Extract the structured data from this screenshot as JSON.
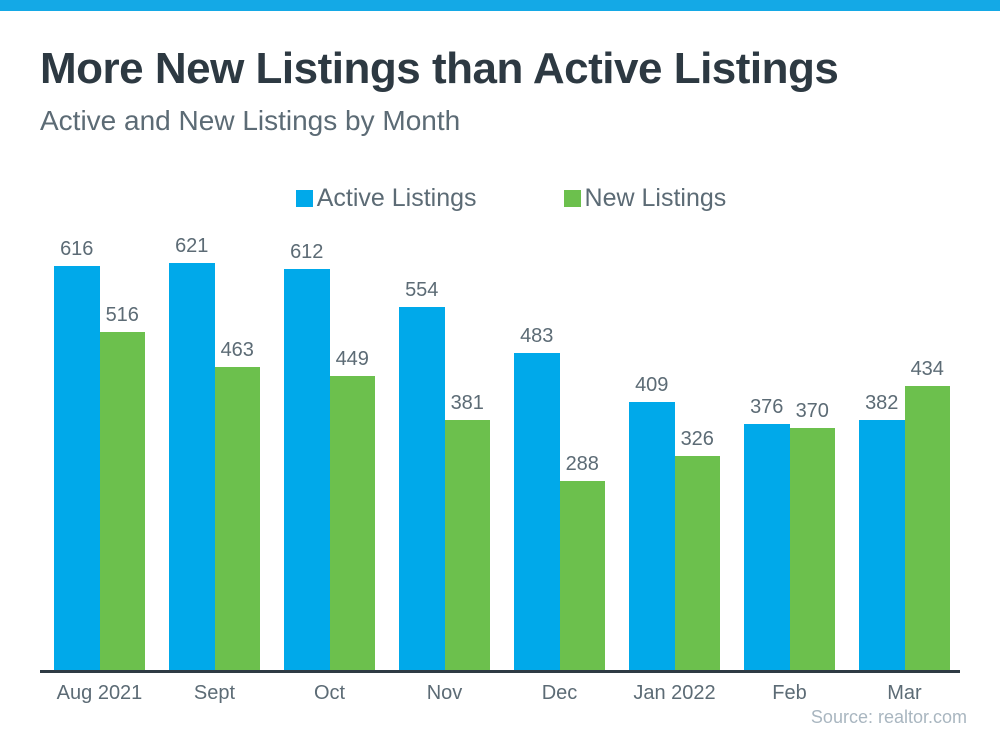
{
  "header": {
    "title": "More New Listings than Active Listings",
    "subtitle": "Active and New Listings by Month"
  },
  "footer": {
    "source": "Source: realtor.com"
  },
  "colors": {
    "accent": "#14A9E6",
    "active_bar": "#00A9EA",
    "new_bar": "#6CC04D",
    "title_text": "#2D3942",
    "muted_text": "#5C6B75",
    "source_text": "#A9B6C0",
    "axis": "#2F3B44"
  },
  "chart_data": {
    "type": "bar",
    "title": "More New Listings than Active Listings",
    "subtitle": "Active and New Listings by Month",
    "categories": [
      "Aug 2021",
      "Sept",
      "Oct",
      "Nov",
      "Dec",
      "Jan 2022",
      "Feb",
      "Mar"
    ],
    "series": [
      {
        "name": "Active Listings",
        "color": "#00A9EA",
        "values": [
          616,
          621,
          612,
          554,
          483,
          409,
          376,
          382
        ]
      },
      {
        "name": "New Listings",
        "color": "#6CC04D",
        "values": [
          516,
          463,
          449,
          381,
          288,
          326,
          370,
          434
        ]
      }
    ],
    "ylim": [
      0,
      621
    ],
    "grid": false,
    "value_labels": true,
    "legend_position": "top-center",
    "xlabel": "",
    "ylabel": ""
  }
}
